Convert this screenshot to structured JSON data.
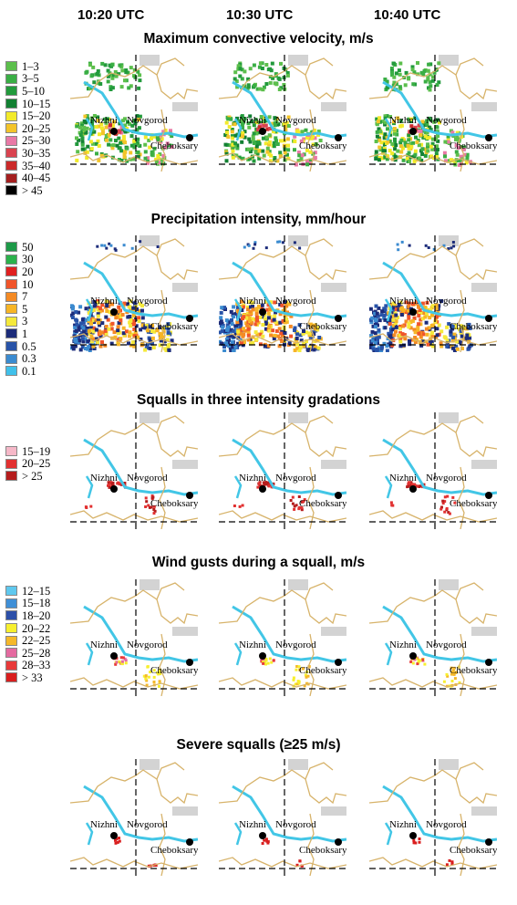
{
  "columns": [
    "10:20 UTC",
    "10:30 UTC",
    "10:40 UTC"
  ],
  "cities": {
    "nizhni": "Nizhni",
    "novgorod": "Novgorod",
    "cheboksary": "Cheboksary"
  },
  "colors": {
    "river": "#42c6e6",
    "border": "#d7b36a",
    "urban": "#d3d3d3"
  },
  "panels": [
    {
      "title": "Maximum convective velocity, m/s",
      "legend": [
        {
          "label": "1–3",
          "color": "#5cbf4c"
        },
        {
          "label": "3–5",
          "color": "#3aae45"
        },
        {
          "label": "5–10",
          "color": "#229a3c"
        },
        {
          "label": "10–15",
          "color": "#128032"
        },
        {
          "label": "15–20",
          "color": "#f2ea2a"
        },
        {
          "label": "20–25",
          "color": "#f3c42a"
        },
        {
          "label": "25–30",
          "color": "#e879a6"
        },
        {
          "label": "30–35",
          "color": "#d9434f"
        },
        {
          "label": "35–40",
          "color": "#cb2a2a"
        },
        {
          "label": "40–45",
          "color": "#a41f1f"
        },
        {
          "label": "> 45",
          "color": "#000000"
        }
      ]
    },
    {
      "title": "Precipitation intensity, mm/hour",
      "legend": [
        {
          "label": "50",
          "color": "#1d9a48"
        },
        {
          "label": "30",
          "color": "#2bb24c"
        },
        {
          "label": "20",
          "color": "#e02020"
        },
        {
          "label": "10",
          "color": "#f0542a"
        },
        {
          "label": "7",
          "color": "#f48a24"
        },
        {
          "label": "5",
          "color": "#f7b526"
        },
        {
          "label": "3",
          "color": "#f5e93a"
        },
        {
          "label": "1",
          "color": "#1c2c7a"
        },
        {
          "label": "0.5",
          "color": "#2853a8"
        },
        {
          "label": "0.3",
          "color": "#3b8bd0"
        },
        {
          "label": "0.1",
          "color": "#40c0ea"
        }
      ]
    },
    {
      "title": "Squalls in three intensity gradations",
      "legend": [
        {
          "label": "15–19",
          "color": "#f6b8c8"
        },
        {
          "label": "20–25",
          "color": "#e23030"
        },
        {
          "label": "> 25",
          "color": "#b51c1c"
        }
      ]
    },
    {
      "title": "Wind gusts during a squall, m/s",
      "legend": [
        {
          "label": "12–15",
          "color": "#5fc8ee"
        },
        {
          "label": "15–18",
          "color": "#3f8fd6"
        },
        {
          "label": "18–20",
          "color": "#2c4fa8"
        },
        {
          "label": "20–22",
          "color": "#f7ef2e"
        },
        {
          "label": "22–25",
          "color": "#f5b82a"
        },
        {
          "label": "25–28",
          "color": "#e46aa0"
        },
        {
          "label": "28–33",
          "color": "#e83a3a"
        },
        {
          "label": "> 33",
          "color": "#d91e1e"
        }
      ]
    },
    {
      "title": "Severe squalls (≥25 m/s)",
      "legend": []
    }
  ]
}
